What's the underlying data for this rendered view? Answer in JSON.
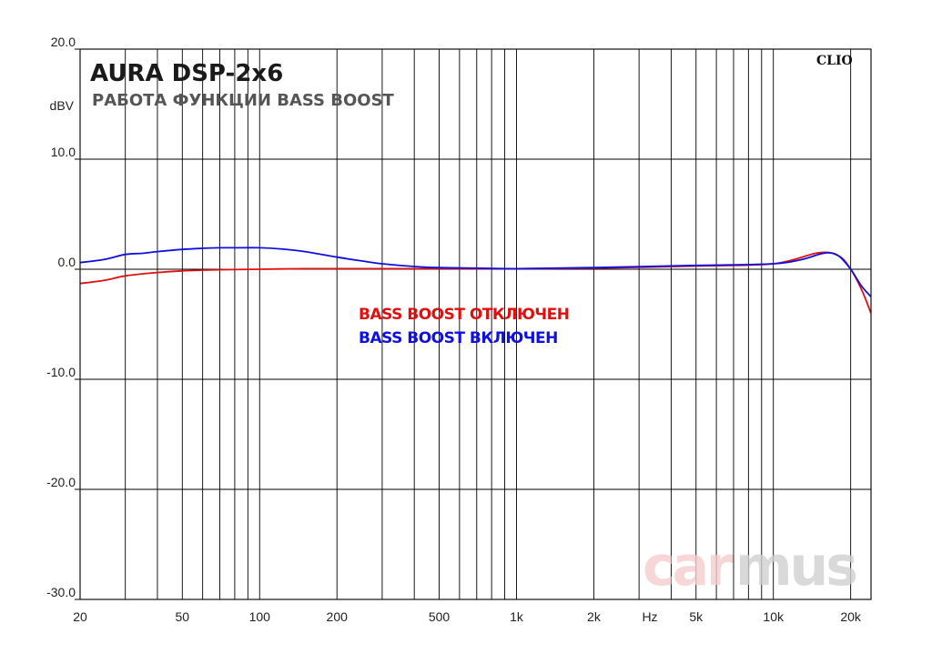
{
  "chart_data": {
    "type": "line",
    "title": "AURA DSP-2x6",
    "subtitle": "РАБОТА ФУНКЦИИ BASS BOOST",
    "ylabel": "dBV",
    "xlabel": "Hz",
    "x_scale": "log",
    "xlim": [
      20,
      24000
    ],
    "ylim": [
      -30,
      20
    ],
    "grid": true,
    "x_tick_labels": [
      {
        "value": 20,
        "label": "20"
      },
      {
        "value": 50,
        "label": "50"
      },
      {
        "value": 100,
        "label": "100"
      },
      {
        "value": 200,
        "label": "200"
      },
      {
        "value": 500,
        "label": "500"
      },
      {
        "value": 1000,
        "label": "1k"
      },
      {
        "value": 2000,
        "label": "2k"
      },
      {
        "value": 5000,
        "label": "5k"
      },
      {
        "value": 10000,
        "label": "10k"
      },
      {
        "value": 20000,
        "label": "20k"
      }
    ],
    "y_tick_labels": [
      {
        "value": 20,
        "label": "20.0"
      },
      {
        "value": 10,
        "label": "10.0"
      },
      {
        "value": 0,
        "label": "0.0"
      },
      {
        "value": -10,
        "label": "-10.0"
      },
      {
        "value": -20,
        "label": "-20.0"
      },
      {
        "value": -30,
        "label": "-30.0"
      }
    ],
    "series": [
      {
        "name": "BASS BOOST ОТКЛЮЧЕН",
        "color": "#e01010",
        "x": [
          20,
          25,
          30,
          40,
          50,
          70,
          100,
          150,
          200,
          300,
          500,
          1000,
          2000,
          5000,
          10000,
          15000,
          18000,
          20000,
          22000,
          24000
        ],
        "y": [
          -1.3,
          -1.0,
          -0.6,
          -0.3,
          -0.15,
          -0.05,
          0.0,
          0.05,
          0.05,
          0.05,
          0.05,
          0.05,
          0.1,
          0.3,
          0.5,
          1.5,
          1.2,
          0.0,
          -1.8,
          -4.0
        ]
      },
      {
        "name": "BASS BOOST ВКЛЮЧЕН",
        "color": "#1010e0",
        "x": [
          20,
          25,
          30,
          35,
          40,
          50,
          60,
          70,
          80,
          100,
          120,
          150,
          200,
          250,
          300,
          400,
          500,
          700,
          1000,
          2000,
          5000,
          10000,
          13000,
          15000,
          16500,
          18000,
          20000,
          22000,
          24000
        ],
        "y": [
          0.6,
          0.9,
          1.35,
          1.45,
          1.6,
          1.8,
          1.9,
          1.95,
          1.95,
          1.95,
          1.85,
          1.6,
          1.1,
          0.75,
          0.5,
          0.25,
          0.15,
          0.1,
          0.05,
          0.15,
          0.35,
          0.5,
          0.9,
          1.35,
          1.5,
          1.2,
          0.0,
          -1.5,
          -2.5
        ]
      }
    ],
    "annotations": [
      "CLIO"
    ],
    "watermark": {
      "text_light": "car",
      "text_dark": "mus"
    }
  }
}
